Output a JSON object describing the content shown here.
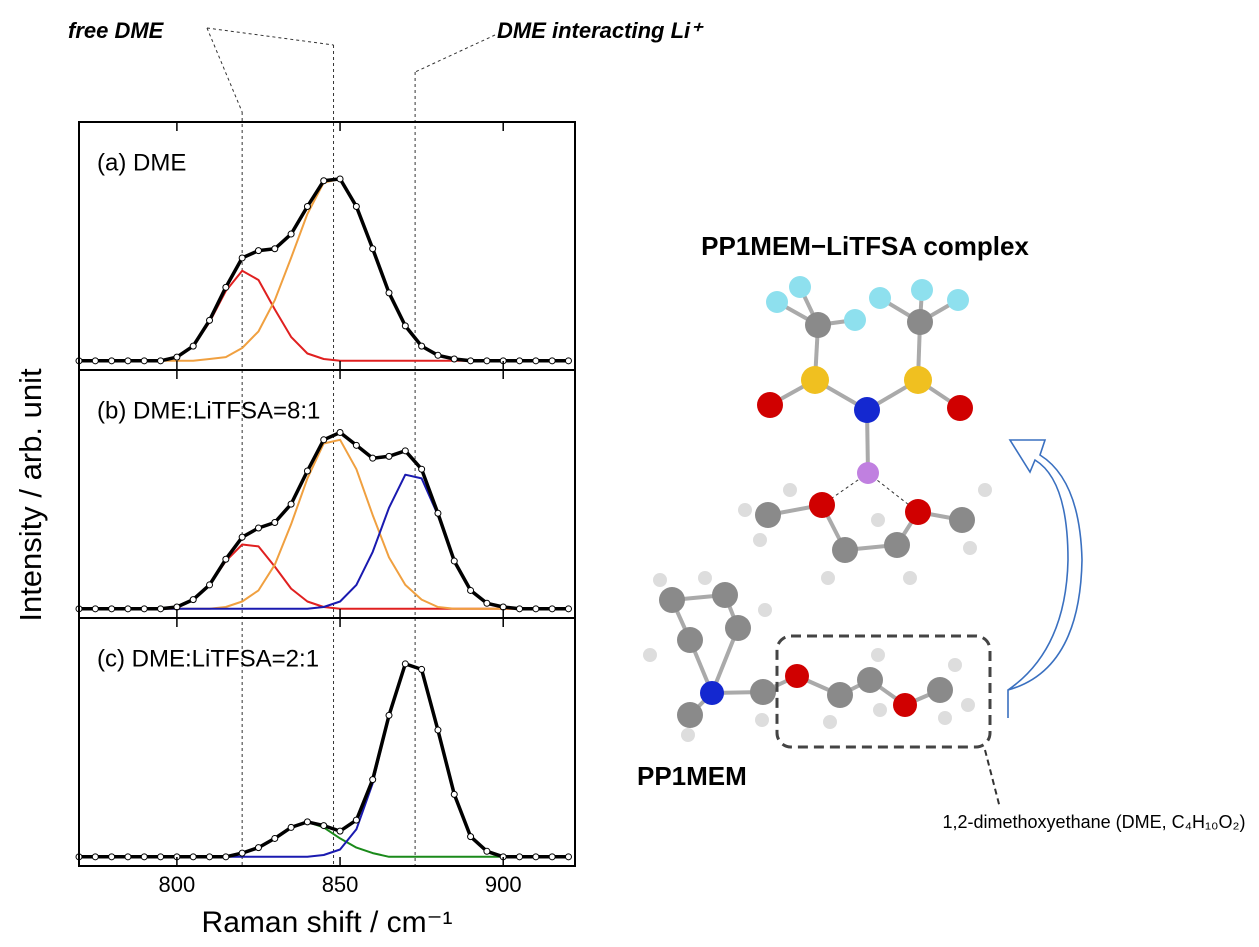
{
  "chart_data": [
    {
      "type": "line",
      "title": "(a) DME",
      "x": [
        770,
        775,
        780,
        785,
        790,
        795,
        800,
        805,
        810,
        815,
        820,
        825,
        830,
        835,
        840,
        845,
        850,
        855,
        860,
        865,
        870,
        875,
        880,
        885,
        890,
        895,
        900,
        905,
        910,
        915,
        920
      ],
      "xlim": [
        770,
        922
      ],
      "xticks": [
        800,
        850,
        900
      ],
      "xtick_labels": false,
      "ylim": [
        -0.05,
        1.3
      ],
      "series": [
        {
          "color": "#e02020",
          "values": [
            0,
            0,
            0,
            0,
            0,
            0,
            0.02,
            0.08,
            0.21,
            0.38,
            0.49,
            0.44,
            0.28,
            0.13,
            0.04,
            0.01,
            0,
            0,
            0,
            0,
            0,
            0,
            0,
            0,
            0,
            0,
            0,
            0,
            0,
            0,
            0
          ]
        },
        {
          "color": "#f0a040",
          "values": [
            0,
            0,
            0,
            0,
            0,
            0,
            0,
            0,
            0.01,
            0.02,
            0.07,
            0.16,
            0.33,
            0.56,
            0.8,
            0.97,
            0.99,
            0.84,
            0.61,
            0.37,
            0.19,
            0.08,
            0.03,
            0.01,
            0,
            0,
            0,
            0,
            0,
            0,
            0
          ]
        },
        {
          "color": "#000000",
          "linewidth": 3.5,
          "values": [
            0,
            0,
            0,
            0,
            0,
            0,
            0.02,
            0.08,
            0.22,
            0.4,
            0.56,
            0.6,
            0.61,
            0.69,
            0.84,
            0.98,
            0.99,
            0.84,
            0.61,
            0.37,
            0.19,
            0.08,
            0.03,
            0.01,
            0,
            0,
            0,
            0,
            0,
            0,
            0
          ]
        },
        {
          "color": "#000000",
          "marker": "circle",
          "values": [
            0,
            0,
            0,
            0,
            0,
            0,
            0.02,
            0.08,
            0.22,
            0.4,
            0.56,
            0.6,
            0.61,
            0.69,
            0.84,
            0.98,
            0.99,
            0.84,
            0.61,
            0.37,
            0.19,
            0.08,
            0.03,
            0.01,
            0,
            0,
            0,
            0,
            0,
            0,
            0
          ]
        }
      ]
    },
    {
      "type": "line",
      "title": "(b) DME:LiTFSA=8:1",
      "x": [
        770,
        775,
        780,
        785,
        790,
        795,
        800,
        805,
        810,
        815,
        820,
        825,
        830,
        835,
        840,
        845,
        850,
        855,
        860,
        865,
        870,
        875,
        880,
        885,
        890,
        895,
        900,
        905,
        910,
        915,
        920
      ],
      "xlim": [
        770,
        922
      ],
      "xticks": [
        800,
        850,
        900
      ],
      "xtick_labels": false,
      "ylim": [
        -0.05,
        1.3
      ],
      "series": [
        {
          "color": "#e02020",
          "values": [
            0,
            0,
            0,
            0,
            0,
            0,
            0.01,
            0.05,
            0.13,
            0.26,
            0.35,
            0.34,
            0.23,
            0.11,
            0.04,
            0.01,
            0,
            0,
            0,
            0,
            0,
            0,
            0,
            0,
            0,
            0,
            0,
            0,
            0,
            0,
            0
          ]
        },
        {
          "color": "#f0a040",
          "values": [
            0,
            0,
            0,
            0,
            0,
            0,
            0,
            0,
            0,
            0.01,
            0.04,
            0.1,
            0.24,
            0.46,
            0.71,
            0.9,
            0.92,
            0.76,
            0.51,
            0.28,
            0.13,
            0.05,
            0.01,
            0,
            0,
            0,
            0,
            0,
            0,
            0,
            0
          ]
        },
        {
          "color": "#1a1ab0",
          "values": [
            0,
            0,
            0,
            0,
            0,
            0,
            0,
            0,
            0,
            0,
            0,
            0,
            0,
            0,
            0,
            0.01,
            0.04,
            0.13,
            0.31,
            0.55,
            0.73,
            0.71,
            0.51,
            0.26,
            0.1,
            0.03,
            0.01,
            0,
            0,
            0,
            0
          ]
        },
        {
          "color": "#000000",
          "linewidth": 3.5,
          "values": [
            0,
            0,
            0,
            0,
            0,
            0,
            0.01,
            0.05,
            0.13,
            0.27,
            0.39,
            0.44,
            0.47,
            0.57,
            0.75,
            0.92,
            0.96,
            0.89,
            0.82,
            0.83,
            0.86,
            0.76,
            0.52,
            0.26,
            0.1,
            0.03,
            0.01,
            0,
            0,
            0,
            0
          ]
        },
        {
          "color": "#000000",
          "marker": "circle",
          "values": [
            0,
            0,
            0,
            0,
            0,
            0,
            0.01,
            0.05,
            0.13,
            0.27,
            0.39,
            0.44,
            0.47,
            0.57,
            0.75,
            0.92,
            0.96,
            0.89,
            0.82,
            0.83,
            0.86,
            0.76,
            0.52,
            0.26,
            0.1,
            0.03,
            0.01,
            0,
            0,
            0,
            0
          ]
        }
      ]
    },
    {
      "type": "line",
      "title": "(c) DME:LiTFSA=2:1",
      "x": [
        770,
        775,
        780,
        785,
        790,
        795,
        800,
        805,
        810,
        815,
        820,
        825,
        830,
        835,
        840,
        845,
        850,
        855,
        860,
        865,
        870,
        875,
        880,
        885,
        890,
        895,
        900,
        905,
        910,
        915,
        920
      ],
      "xlim": [
        770,
        922
      ],
      "xticks": [
        800,
        850,
        900
      ],
      "ylim": [
        -0.05,
        1.3
      ],
      "xlabel": "Raman shift / cm⁻¹",
      "series": [
        {
          "color": "#1a8a1a",
          "values": [
            0,
            0,
            0,
            0,
            0,
            0,
            0,
            0,
            0,
            0,
            0.02,
            0.05,
            0.1,
            0.16,
            0.19,
            0.16,
            0.1,
            0.05,
            0.02,
            0,
            0,
            0,
            0,
            0,
            0,
            0,
            0,
            0,
            0,
            0,
            0
          ]
        },
        {
          "color": "#1a1ab0",
          "values": [
            0,
            0,
            0,
            0,
            0,
            0,
            0,
            0,
            0,
            0,
            0,
            0,
            0,
            0,
            0,
            0.01,
            0.04,
            0.15,
            0.4,
            0.77,
            1.05,
            1.02,
            0.69,
            0.34,
            0.11,
            0.03,
            0,
            0,
            0,
            0,
            0
          ]
        },
        {
          "color": "#000000",
          "linewidth": 3.5,
          "values": [
            0,
            0,
            0,
            0,
            0,
            0,
            0,
            0,
            0,
            0,
            0.02,
            0.05,
            0.1,
            0.16,
            0.19,
            0.17,
            0.14,
            0.2,
            0.42,
            0.77,
            1.05,
            1.02,
            0.69,
            0.34,
            0.11,
            0.03,
            0,
            0,
            0,
            0,
            0
          ]
        },
        {
          "color": "#000000",
          "marker": "circle",
          "values": [
            0,
            0,
            0,
            0,
            0,
            0,
            0,
            0,
            0,
            0,
            0.02,
            0.05,
            0.1,
            0.16,
            0.19,
            0.17,
            0.14,
            0.2,
            0.42,
            0.77,
            1.05,
            1.02,
            0.69,
            0.34,
            0.11,
            0.03,
            0,
            0,
            0,
            0,
            0
          ]
        }
      ]
    }
  ],
  "ylabel": "Intensity / arb. unit",
  "reference_lines": [
    820,
    848,
    873
  ],
  "annotations": [
    "free DME",
    "DME interacting Li⁺"
  ],
  "diagram": {
    "complex_label": "PP1MEM−LiTFSA complex",
    "cation_label": "PP1MEM",
    "dme_label": "1,2-dimethoxyethane (DME, C₄H₁₀O₂)"
  }
}
